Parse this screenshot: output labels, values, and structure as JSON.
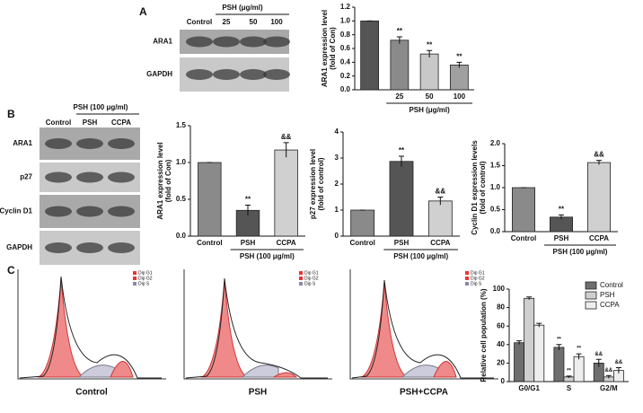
{
  "figure": {
    "panel_labels": [
      "A",
      "B",
      "C"
    ],
    "blot_a": {
      "group": "PSH (μg/ml)",
      "lanes": [
        "Control",
        "25",
        "50",
        "100"
      ],
      "rows": [
        "ARA1",
        "GAPDH"
      ]
    },
    "blot_b": {
      "group": "PSH (100 μg/ml)",
      "lanes": [
        "Control",
        "PSH",
        "CCPA"
      ],
      "rows": [
        "ARA1",
        "p27",
        "Cyclin D1",
        "GAPDH"
      ]
    },
    "flow_c": {
      "samples": [
        "Control",
        "PSH",
        "PSH+CCPA"
      ],
      "legend": [
        "Dip G1",
        "Dip G2",
        "Dip S"
      ]
    }
  },
  "chart_data": [
    {
      "type": "bar",
      "ylabel": [
        "ARA1 expression level",
        "(fold of Con)"
      ],
      "xlabel": "PSH (μg/ml)",
      "categories": [
        null,
        "25",
        "50",
        "100"
      ],
      "values": [
        1.0,
        0.72,
        0.52,
        0.36
      ],
      "errors": [
        0,
        0.05,
        0.05,
        0.04
      ],
      "annotations": [
        null,
        "**",
        "**",
        "**"
      ],
      "colors": [
        "#555555",
        "#8a8a8a",
        "#c8c8c8",
        "#a0a0a0"
      ],
      "ylim": [
        0,
        1.2
      ],
      "yticks": [
        {
          "value": 0,
          "label": "0.0"
        },
        {
          "value": 0.2,
          "label": "0.2"
        },
        {
          "value": 0.4,
          "label": "0.4"
        },
        {
          "value": 0.6,
          "label": "0.6"
        },
        {
          "value": 0.8,
          "label": "0.8"
        },
        {
          "value": 1.0,
          "label": "1.0"
        },
        {
          "value": 1.2,
          "label": "1.2"
        }
      ]
    },
    {
      "type": "bar",
      "ylabel": [
        "ARA1 expression level",
        "(fold of Con)"
      ],
      "xlabel": "PSH (100 μg/ml)",
      "categories": [
        "Control",
        "PSH",
        "CCPA"
      ],
      "values": [
        1.0,
        0.35,
        1.17
      ],
      "errors": [
        0,
        0.07,
        0.1
      ],
      "annotations": [
        null,
        "**",
        "&&"
      ],
      "colors": [
        "#8a8a8a",
        "#555555",
        "#d0d0d0"
      ],
      "ylim": [
        0,
        1.5
      ],
      "yticks": [
        {
          "value": 0,
          "label": "0.0"
        },
        {
          "value": 0.5,
          "label": "0.5"
        },
        {
          "value": 1.0,
          "label": "1.0"
        },
        {
          "value": 1.5,
          "label": "1.5"
        }
      ]
    },
    {
      "type": "bar",
      "ylabel": [
        "p27 expression level",
        "(fold of control)"
      ],
      "xlabel": "PSH (100 μg/ml)",
      "categories": [
        "Control",
        "PSH",
        "CCPA"
      ],
      "values": [
        1.0,
        2.87,
        1.35
      ],
      "errors": [
        0,
        0.2,
        0.15
      ],
      "annotations": [
        null,
        "**",
        "&&"
      ],
      "colors": [
        "#8a8a8a",
        "#555555",
        "#d0d0d0"
      ],
      "ylim": [
        0,
        4
      ],
      "yticks": [
        0,
        1,
        2,
        3,
        4
      ]
    },
    {
      "type": "bar",
      "ylabel": [
        "Cyclin D1 expression levels",
        "(fold of control)"
      ],
      "xlabel": "PSH (100 μg/ml)",
      "categories": [
        "Control",
        "PSH",
        "CCPA"
      ],
      "values": [
        1.0,
        0.33,
        1.57
      ],
      "errors": [
        0,
        0.05,
        0.05
      ],
      "annotations": [
        null,
        "**",
        "&&"
      ],
      "colors": [
        "#8a8a8a",
        "#555555",
        "#d0d0d0"
      ],
      "ylim": [
        0,
        2.0
      ],
      "yticks": [
        {
          "value": 0,
          "label": "0.0"
        },
        {
          "value": 0.5,
          "label": "0.5"
        },
        {
          "value": 1.0,
          "label": "1.0"
        },
        {
          "value": 1.5,
          "label": "1.5"
        },
        {
          "value": 2.0,
          "label": "2.0"
        }
      ]
    },
    {
      "type": "bar",
      "ylabel": [
        "Relative cell population (%)"
      ],
      "categories": [
        "G0/G1",
        "S",
        "G2/M"
      ],
      "series": [
        {
          "name": "Control",
          "color": "#6e6e6e",
          "values": [
            42,
            37,
            20
          ],
          "errors": [
            2,
            3,
            4
          ],
          "annotations": [
            null,
            "**",
            "&&"
          ]
        },
        {
          "name": "PSH",
          "color": "#cfcfcf",
          "values": [
            90,
            5,
            5
          ],
          "errors": [
            1.5,
            1,
            1.5
          ],
          "annotations": [
            null,
            "**",
            "&&"
          ]
        },
        {
          "name": "CCPA",
          "color": "#eeeeee",
          "values": [
            61,
            27,
            12
          ],
          "errors": [
            2,
            3,
            3
          ],
          "annotations": [
            null,
            "**",
            "&&"
          ]
        }
      ],
      "ylim": [
        0,
        100
      ],
      "yticks": [
        0,
        20,
        40,
        60,
        80,
        100
      ]
    }
  ]
}
